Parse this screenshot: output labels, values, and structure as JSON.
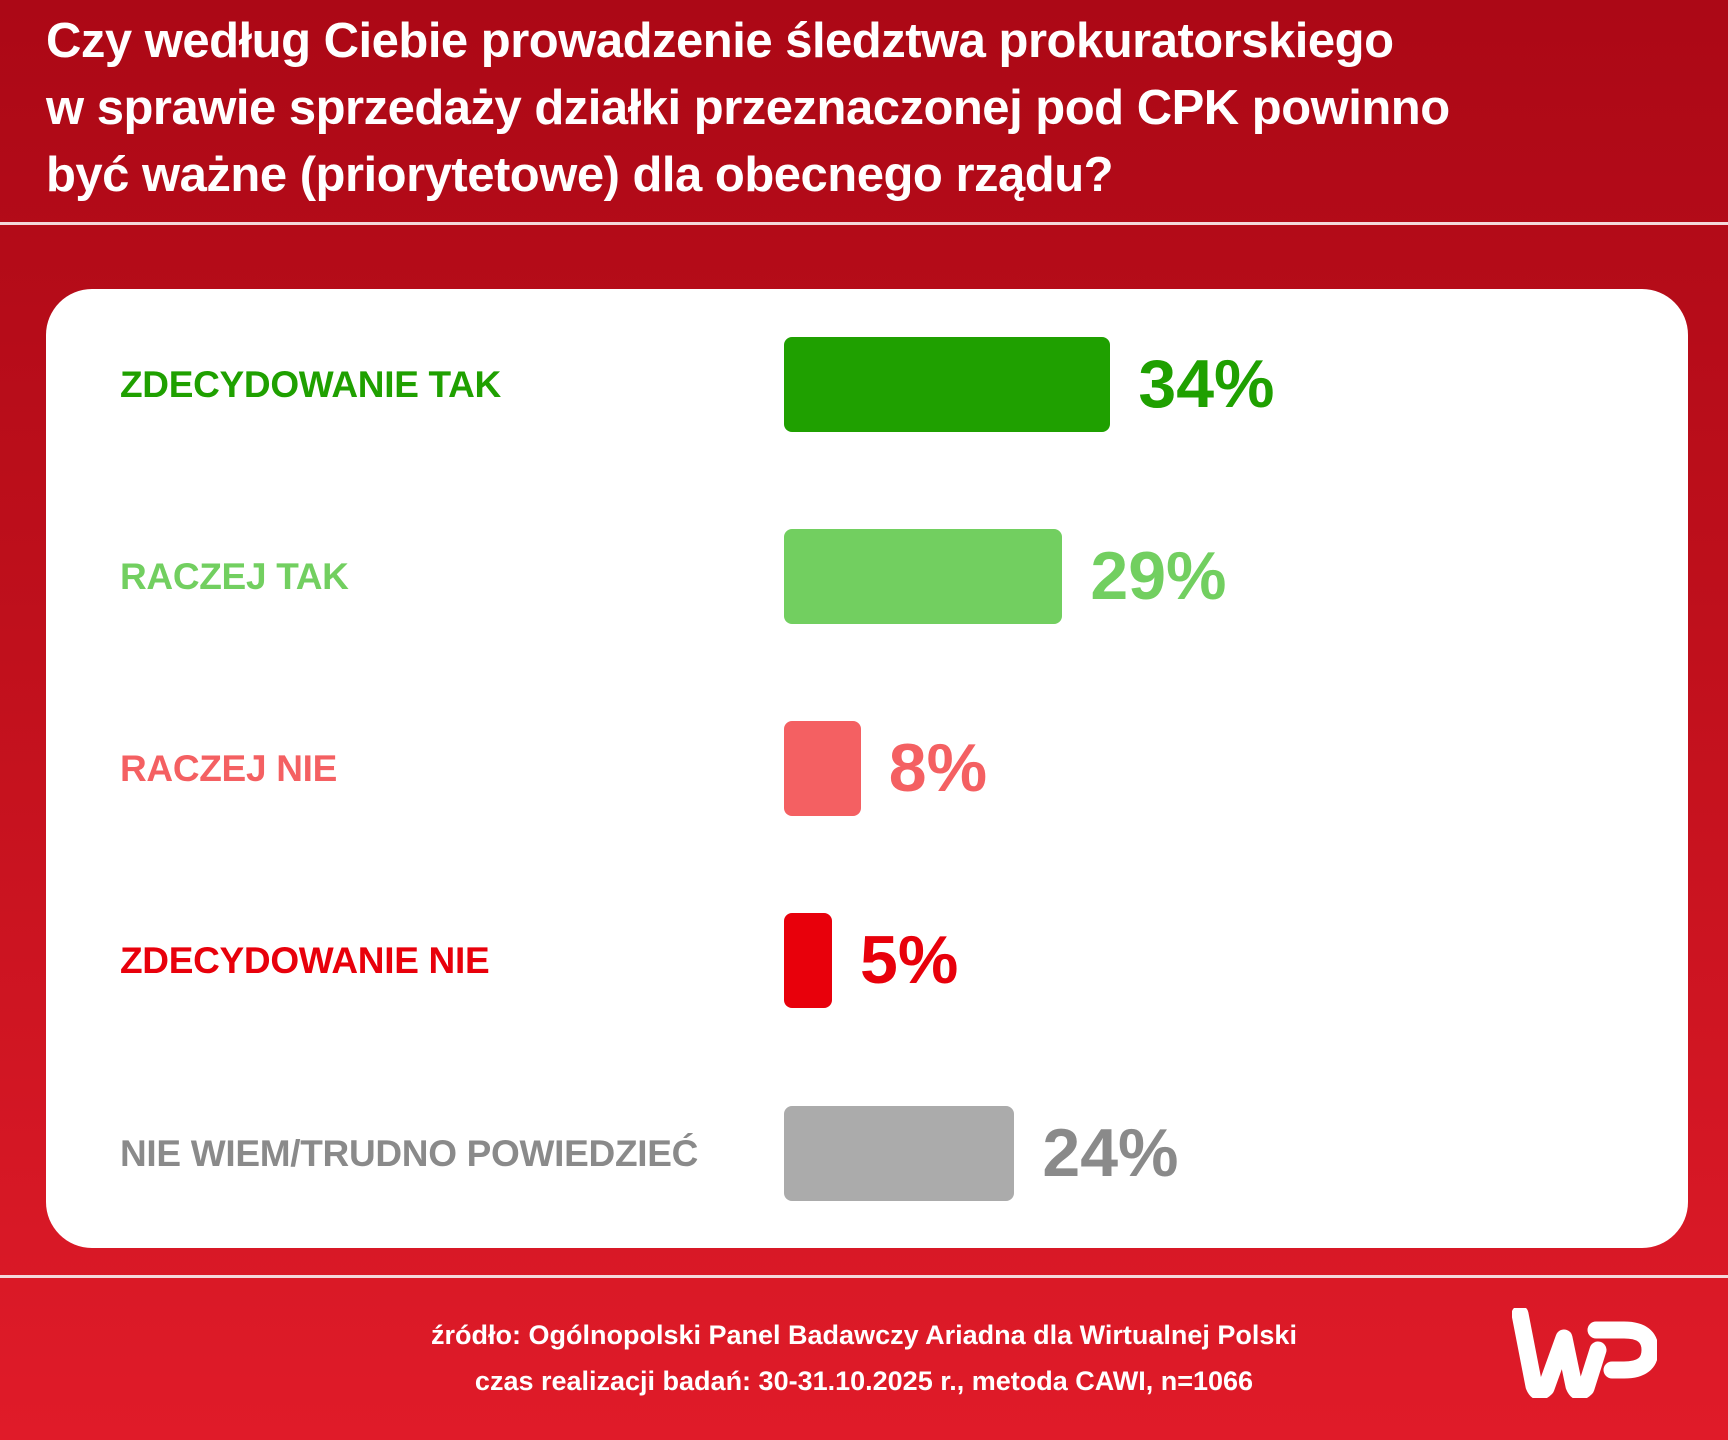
{
  "title_lines": [
    "Czy według Ciebie prowadzenie śledztwa prokuratorskiego",
    "w sprawie sprzedaży działki przeznaczonej pod CPK powinno",
    "być ważne (priorytetowe) dla obecnego rządu?"
  ],
  "chart_data": {
    "type": "bar",
    "orientation": "horizontal",
    "title": "Czy według Ciebie prowadzenie śledztwa prokuratorskiego w sprawie sprzedaży działki przeznaczonej pod CPK powinno być ważne (priorytetowe) dla obecnego rządu?",
    "categories": [
      "ZDECYDOWANIE TAK",
      "RACZEJ TAK",
      "RACZEJ NIE",
      "ZDECYDOWANIE NIE",
      "NIE WIEM/TRUDNO POWIEDZIEĆ"
    ],
    "values": [
      34,
      29,
      8,
      5,
      24
    ],
    "value_labels": [
      "34%",
      "29%",
      "8%",
      "5%",
      "24%"
    ],
    "colors": [
      "#1fa000",
      "#72cf60",
      "#f46062",
      "#e8000b",
      "#ababab"
    ],
    "label_colors": [
      "#1fa000",
      "#72cf60",
      "#f46062",
      "#e8000b",
      "#8a8a8a"
    ],
    "grid": false,
    "legend": "none"
  },
  "footer": {
    "source": "źródło: Ogólnopolski Panel Badawczy Ariadna dla Wirtualnej Polski",
    "details": "czas realizacji badań: 30-31.10.2025 r., metoda CAWI, n=1066"
  },
  "logo": {
    "text": "WP",
    "color": "#ffffff"
  }
}
